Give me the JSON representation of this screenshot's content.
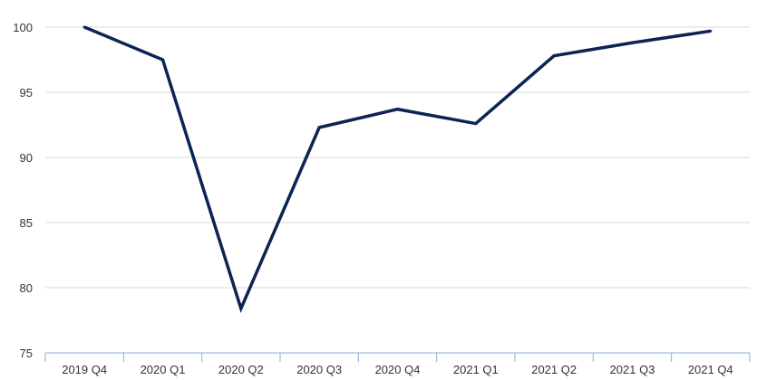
{
  "chart_data": {
    "type": "line",
    "title": "",
    "xlabel": "",
    "ylabel": "",
    "categories": [
      "2019 Q4",
      "2020 Q1",
      "2020 Q2",
      "2020 Q3",
      "2020 Q4",
      "2021 Q1",
      "2021 Q2",
      "2021 Q3",
      "2021 Q4"
    ],
    "series": [
      {
        "values": [
          100.0,
          97.5,
          78.4,
          92.3,
          93.7,
          92.6,
          97.8,
          98.8,
          99.7
        ]
      }
    ],
    "ylim": [
      75,
      100
    ],
    "yticks": [
      "75",
      "80",
      "85",
      "90",
      "95",
      "100"
    ],
    "grid": true,
    "legend": "none",
    "colors": {
      "line": "#0b2454",
      "grid": "#d9d9d9",
      "axis": "#8eaadb"
    }
  }
}
